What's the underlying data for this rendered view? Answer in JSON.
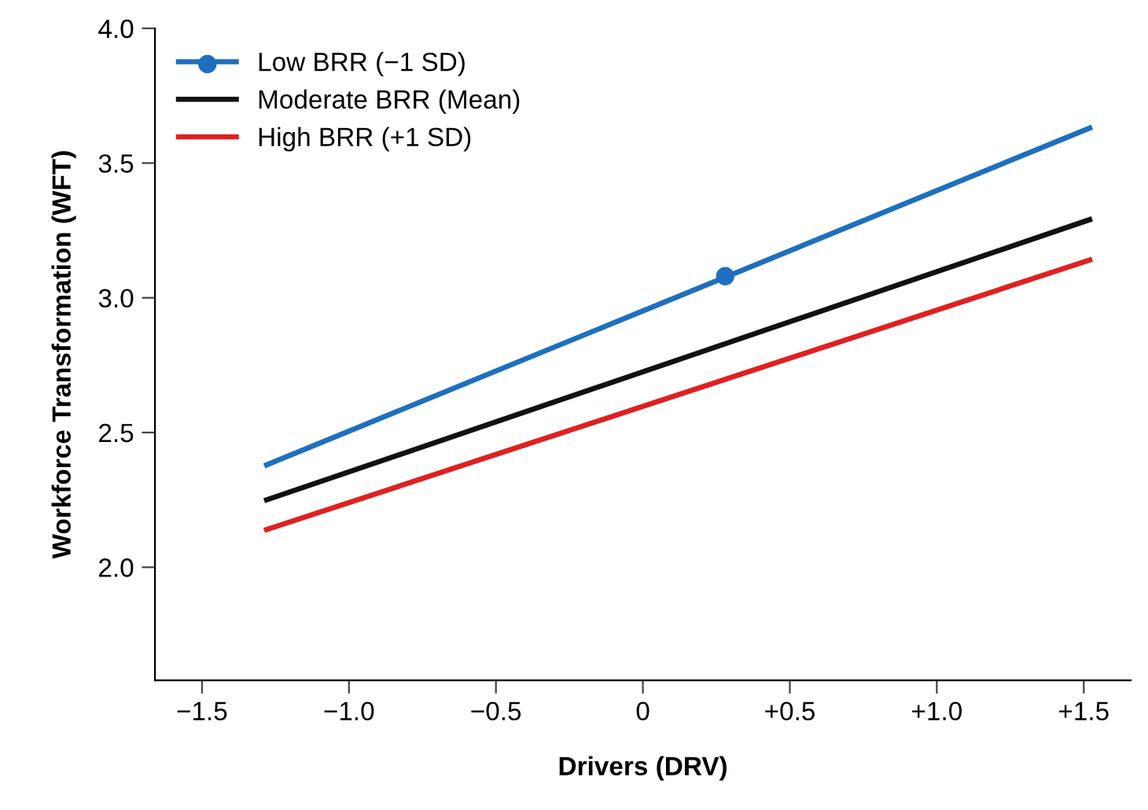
{
  "chart_data": {
    "type": "line",
    "xlabel": "Drivers (DRV)",
    "ylabel": "Workforce Transformation (WFT)",
    "xlim": [
      -1.66,
      1.66
    ],
    "ylim": [
      1.58,
      4.0
    ],
    "xticks": [
      {
        "value": -1.5,
        "label": "−1.5"
      },
      {
        "value": -1.0,
        "label": "−1.0"
      },
      {
        "value": -0.5,
        "label": "−0.5"
      },
      0,
      {
        "value": 0.5,
        "label": "+0.5"
      },
      {
        "value": 1.0,
        "label": "+1.0"
      },
      {
        "value": 1.5,
        "label": "+1.5"
      }
    ],
    "yticks": [
      {
        "value": 2.0,
        "label": "2.0"
      },
      2.5,
      {
        "value": 3.0,
        "label": "3.0"
      },
      3.5,
      {
        "value": 4.0,
        "label": "4.0"
      }
    ],
    "grid": false,
    "legend": "top left",
    "series": [
      {
        "name": "Low BRR (−1 SD)",
        "color": "#1f6fbf",
        "x": [
          -1.28,
          1.52
        ],
        "values": [
          2.38,
          3.63
        ]
      },
      {
        "type": "scatter",
        "color": "#1f6fbf",
        "x": [
          0.28
        ],
        "values": [
          3.08
        ],
        "marker": "circle"
      },
      {
        "name": "Moderate BRR (Mean)",
        "color": "#111111",
        "x": [
          -1.28,
          1.52
        ],
        "values": [
          2.25,
          3.29
        ]
      },
      {
        "name": "High BRR (+1 SD)",
        "color": "#e02020",
        "x": [
          -1.28,
          1.52
        ],
        "values": [
          2.14,
          3.14
        ]
      }
    ]
  }
}
